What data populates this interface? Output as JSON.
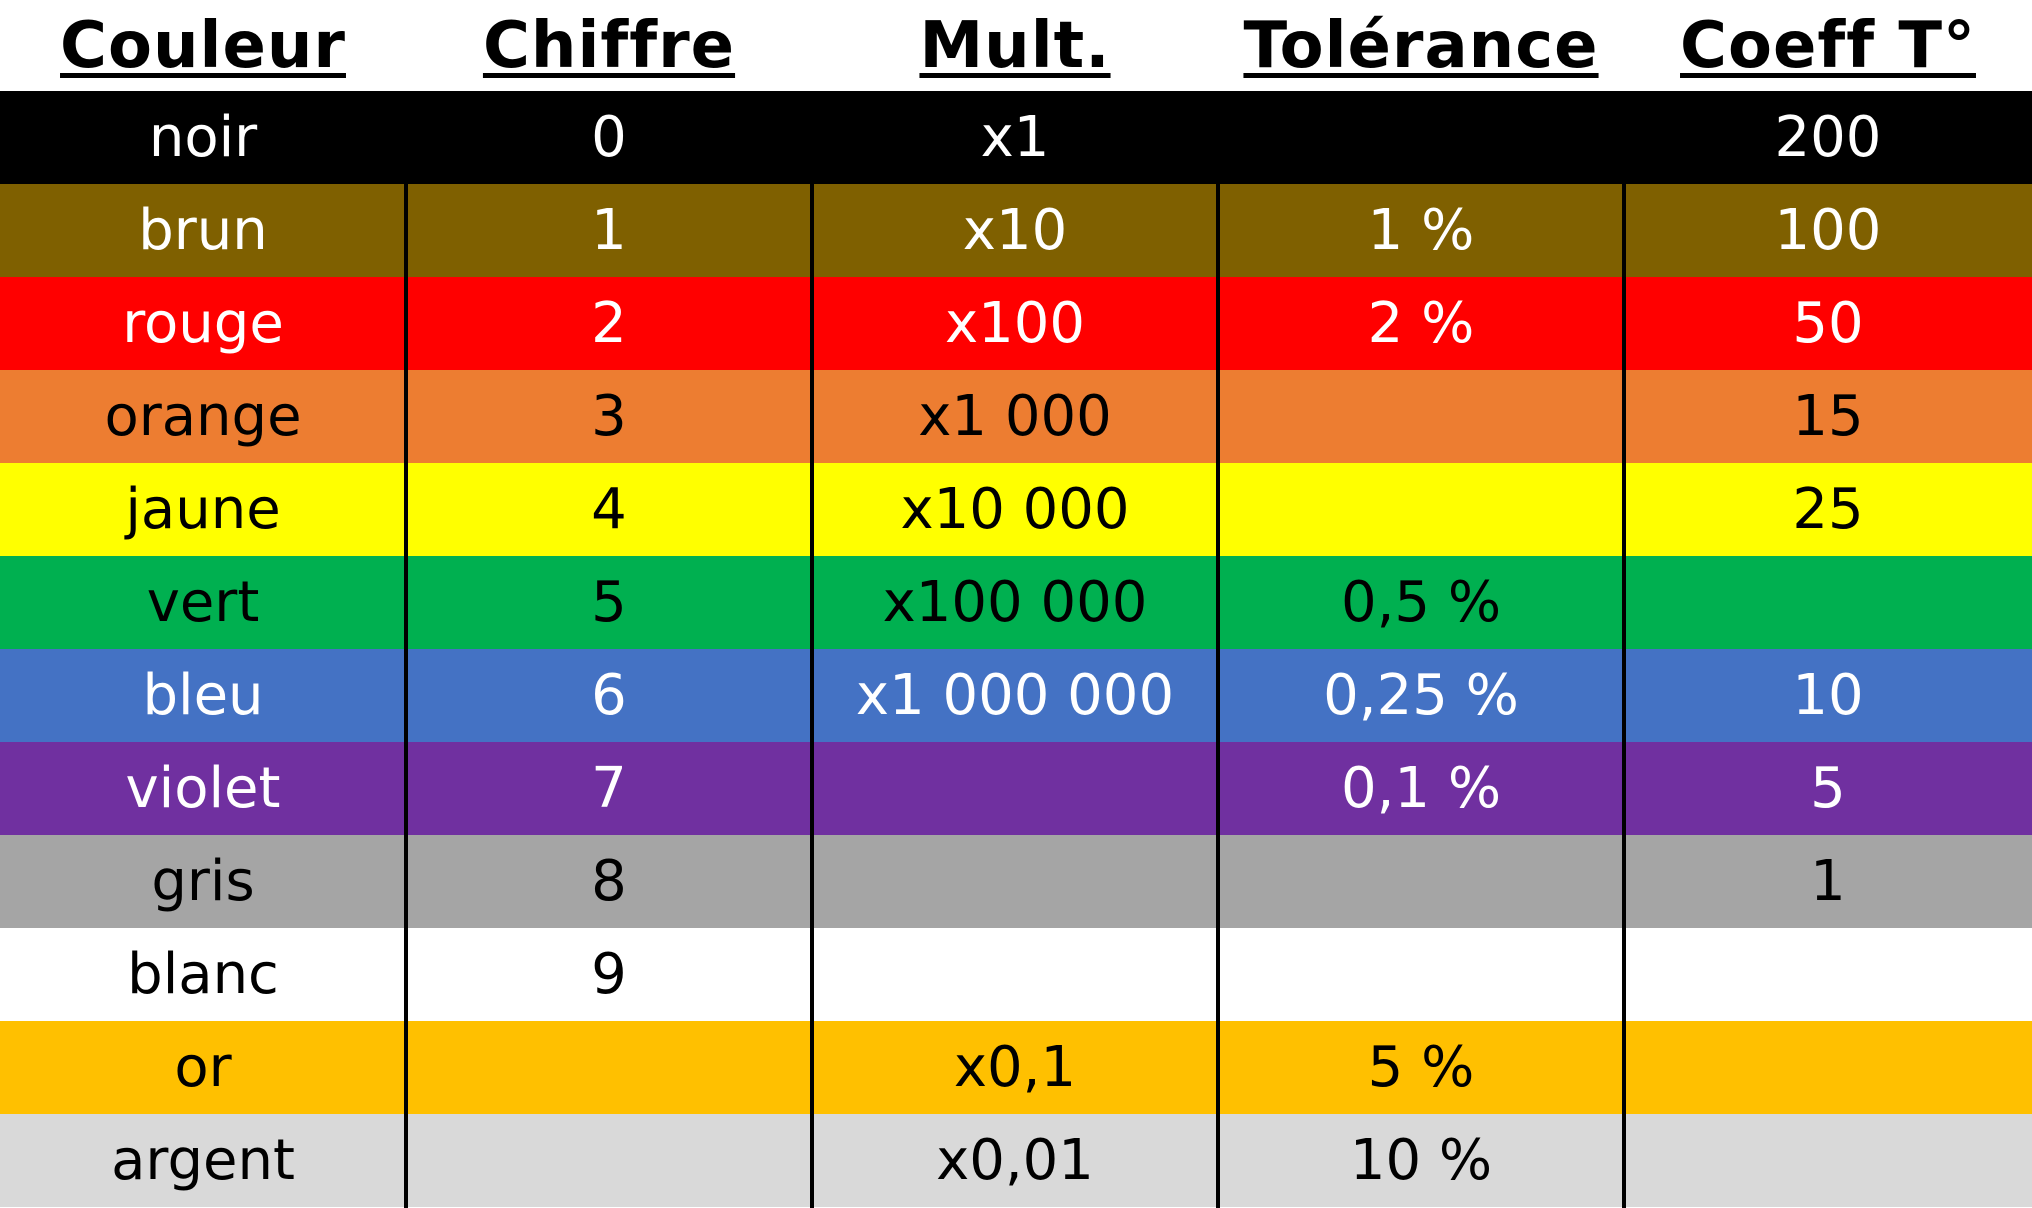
{
  "headers": [
    "Couleur",
    "Chiffre",
    "Mult.",
    "Tolérance",
    "Coeff T°"
  ],
  "rows": [
    {
      "color": "noir",
      "digit": "0",
      "mult": "x1",
      "tolerance": "",
      "coeff": "200",
      "bg": "#000000",
      "fg": "#ffffff"
    },
    {
      "color": "brun",
      "digit": "1",
      "mult": "x10",
      "tolerance": "1 %",
      "coeff": "100",
      "bg": "#7f6000",
      "fg": "#ffffff"
    },
    {
      "color": "rouge",
      "digit": "2",
      "mult": "x100",
      "tolerance": "2 %",
      "coeff": "50",
      "bg": "#ff0000",
      "fg": "#ffffff"
    },
    {
      "color": "orange",
      "digit": "3",
      "mult": "x1 000",
      "tolerance": "",
      "coeff": "15",
      "bg": "#ed7d31",
      "fg": "#000000"
    },
    {
      "color": "jaune",
      "digit": "4",
      "mult": "x10 000",
      "tolerance": "",
      "coeff": "25",
      "bg": "#ffff00",
      "fg": "#000000"
    },
    {
      "color": "vert",
      "digit": "5",
      "mult": "x100 000",
      "tolerance": "0,5 %",
      "coeff": "",
      "bg": "#00b050",
      "fg": "#000000"
    },
    {
      "color": "bleu",
      "digit": "6",
      "mult": "x1 000 000",
      "tolerance": "0,25 %",
      "coeff": "10",
      "bg": "#4472c4",
      "fg": "#ffffff"
    },
    {
      "color": "violet",
      "digit": "7",
      "mult": "",
      "tolerance": "0,1 %",
      "coeff": "5",
      "bg": "#7030a0",
      "fg": "#ffffff"
    },
    {
      "color": "gris",
      "digit": "8",
      "mult": "",
      "tolerance": "",
      "coeff": "1",
      "bg": "#a5a5a5",
      "fg": "#000000"
    },
    {
      "color": "blanc",
      "digit": "9",
      "mult": "",
      "tolerance": "",
      "coeff": "",
      "bg": "#ffffff",
      "fg": "#000000"
    },
    {
      "color": "or",
      "digit": "",
      "mult": "x0,1",
      "tolerance": "5 %",
      "coeff": "",
      "bg": "#ffc000",
      "fg": "#000000"
    },
    {
      "color": "argent",
      "digit": "",
      "mult": "x0,01",
      "tolerance": "10 %",
      "coeff": "",
      "bg": "#d9d9d9",
      "fg": "#000000"
    }
  ]
}
